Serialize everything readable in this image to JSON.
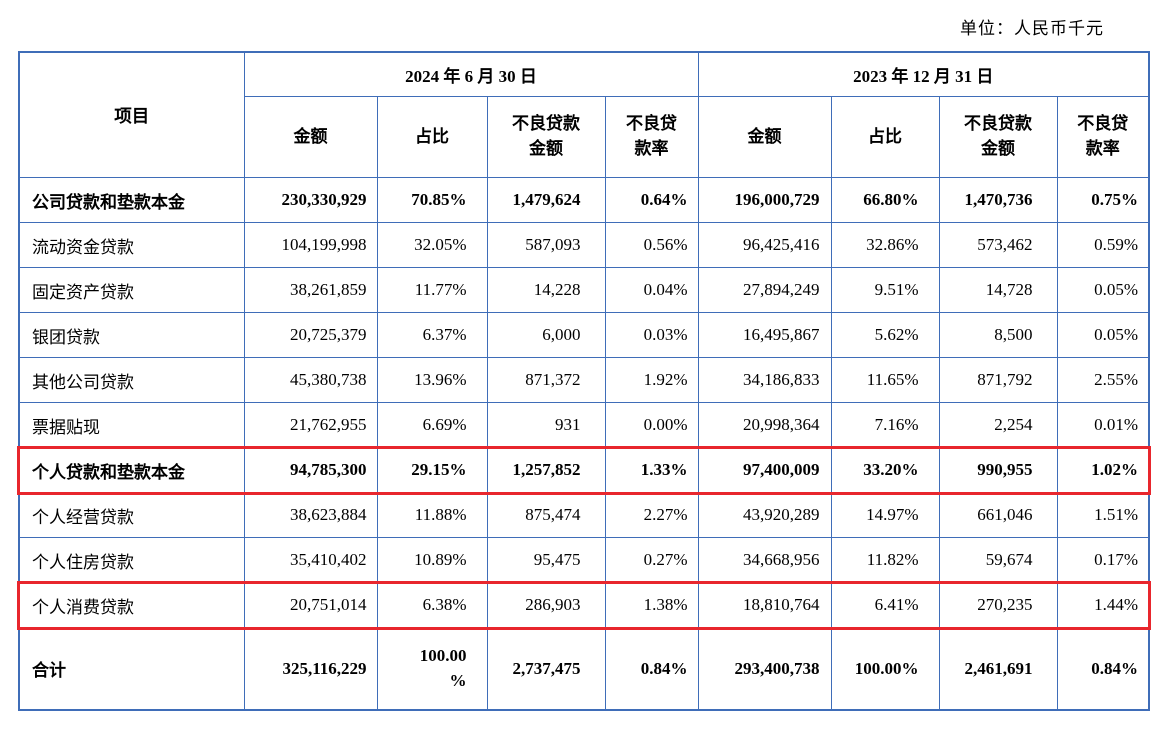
{
  "unit_label": "单位：人民币千元",
  "accent_colors": {
    "table_border": "#3f6db8",
    "highlight_box": "#e8262d"
  },
  "table": {
    "item_header": "项目",
    "col_groups": [
      {
        "label": "2024 年 6 月 30 日",
        "columns": [
          "金额",
          "占比",
          "不良贷款\n金额",
          "不良贷\n款率"
        ]
      },
      {
        "label": "2023 年 12 月 31 日",
        "columns": [
          "金额",
          "占比",
          "不良贷款\n金额",
          "不良贷\n款率"
        ]
      }
    ],
    "rows": [
      {
        "item": "公司贷款和垫款本金",
        "bold": true,
        "highlight": false,
        "total": false,
        "values": [
          "230,330,929",
          "70.85%",
          "1,479,624",
          "0.64%",
          "196,000,729",
          "66.80%",
          "1,470,736",
          "0.75%"
        ]
      },
      {
        "item": "流动资金贷款",
        "bold": false,
        "highlight": false,
        "total": false,
        "values": [
          "104,199,998",
          "32.05%",
          "587,093",
          "0.56%",
          "96,425,416",
          "32.86%",
          "573,462",
          "0.59%"
        ]
      },
      {
        "item": "固定资产贷款",
        "bold": false,
        "highlight": false,
        "total": false,
        "values": [
          "38,261,859",
          "11.77%",
          "14,228",
          "0.04%",
          "27,894,249",
          "9.51%",
          "14,728",
          "0.05%"
        ]
      },
      {
        "item": "银团贷款",
        "bold": false,
        "highlight": false,
        "total": false,
        "values": [
          "20,725,379",
          "6.37%",
          "6,000",
          "0.03%",
          "16,495,867",
          "5.62%",
          "8,500",
          "0.05%"
        ]
      },
      {
        "item": "其他公司贷款",
        "bold": false,
        "highlight": false,
        "total": false,
        "values": [
          "45,380,738",
          "13.96%",
          "871,372",
          "1.92%",
          "34,186,833",
          "11.65%",
          "871,792",
          "2.55%"
        ]
      },
      {
        "item": "票据贴现",
        "bold": false,
        "highlight": false,
        "total": false,
        "values": [
          "21,762,955",
          "6.69%",
          "931",
          "0.00%",
          "20,998,364",
          "7.16%",
          "2,254",
          "0.01%"
        ]
      },
      {
        "item": "个人贷款和垫款本金",
        "bold": true,
        "highlight": true,
        "total": false,
        "values": [
          "94,785,300",
          "29.15%",
          "1,257,852",
          "1.33%",
          "97,400,009",
          "33.20%",
          "990,955",
          "1.02%"
        ]
      },
      {
        "item": "个人经营贷款",
        "bold": false,
        "highlight": false,
        "total": false,
        "values": [
          "38,623,884",
          "11.88%",
          "875,474",
          "2.27%",
          "43,920,289",
          "14.97%",
          "661,046",
          "1.51%"
        ]
      },
      {
        "item": "个人住房贷款",
        "bold": false,
        "highlight": false,
        "total": false,
        "values": [
          "35,410,402",
          "10.89%",
          "95,475",
          "0.27%",
          "34,668,956",
          "11.82%",
          "59,674",
          "0.17%"
        ]
      },
      {
        "item": "个人消费贷款",
        "bold": false,
        "highlight": true,
        "total": false,
        "values": [
          "20,751,014",
          "6.38%",
          "286,903",
          "1.38%",
          "18,810,764",
          "6.41%",
          "270,235",
          "1.44%"
        ]
      },
      {
        "item": "合计",
        "bold": true,
        "highlight": false,
        "total": true,
        "values": [
          "325,116,229",
          "100.00\n%",
          "2,737,475",
          "0.84%",
          "293,400,738",
          "100.00%",
          "2,461,691",
          "0.84%"
        ]
      }
    ]
  }
}
